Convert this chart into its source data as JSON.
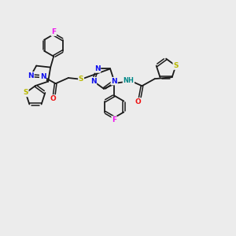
{
  "bg_color": "#ececec",
  "bond_color": "#1a1a1a",
  "figsize": [
    3.0,
    3.0
  ],
  "dpi": 100,
  "atom_colors": {
    "N": "#1010ee",
    "S": "#b8b800",
    "O": "#ee1010",
    "F": "#ee10ee",
    "H": "#008888",
    "C": "#1a1a1a"
  }
}
